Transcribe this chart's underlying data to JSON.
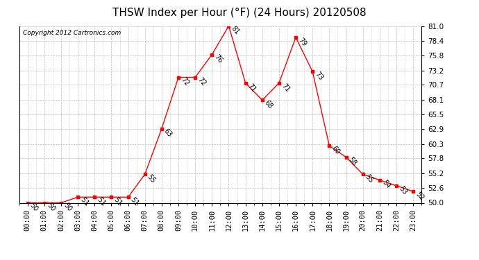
{
  "title": "THSW Index per Hour (°F) (24 Hours) 20120508",
  "copyright": "Copyright 2012 Cartronics.com",
  "hours": [
    "00:00",
    "01:00",
    "02:00",
    "03:00",
    "04:00",
    "05:00",
    "06:00",
    "07:00",
    "08:00",
    "09:00",
    "10:00",
    "11:00",
    "12:00",
    "13:00",
    "14:00",
    "15:00",
    "16:00",
    "17:00",
    "18:00",
    "19:00",
    "20:00",
    "21:00",
    "22:00",
    "23:00"
  ],
  "values": [
    50,
    50,
    50,
    51,
    51,
    51,
    51,
    55,
    63,
    72,
    72,
    76,
    81,
    71,
    68,
    71,
    79,
    73,
    60,
    58,
    55,
    54,
    53,
    52
  ],
  "ylim": [
    50.0,
    81.0
  ],
  "yticks": [
    50.0,
    52.6,
    55.2,
    57.8,
    60.3,
    62.9,
    65.5,
    68.1,
    70.7,
    73.2,
    75.8,
    78.4,
    81.0
  ],
  "line_color": "red",
  "marker": "s",
  "marker_size": 2.5,
  "grid_color": "#bbbbbb",
  "bg_color": "#ffffff",
  "plot_bg_color": "#ffffff",
  "title_fontsize": 11,
  "label_fontsize": 7,
  "tick_fontsize": 7.5,
  "copyright_fontsize": 6.5,
  "label_rotation": 310
}
